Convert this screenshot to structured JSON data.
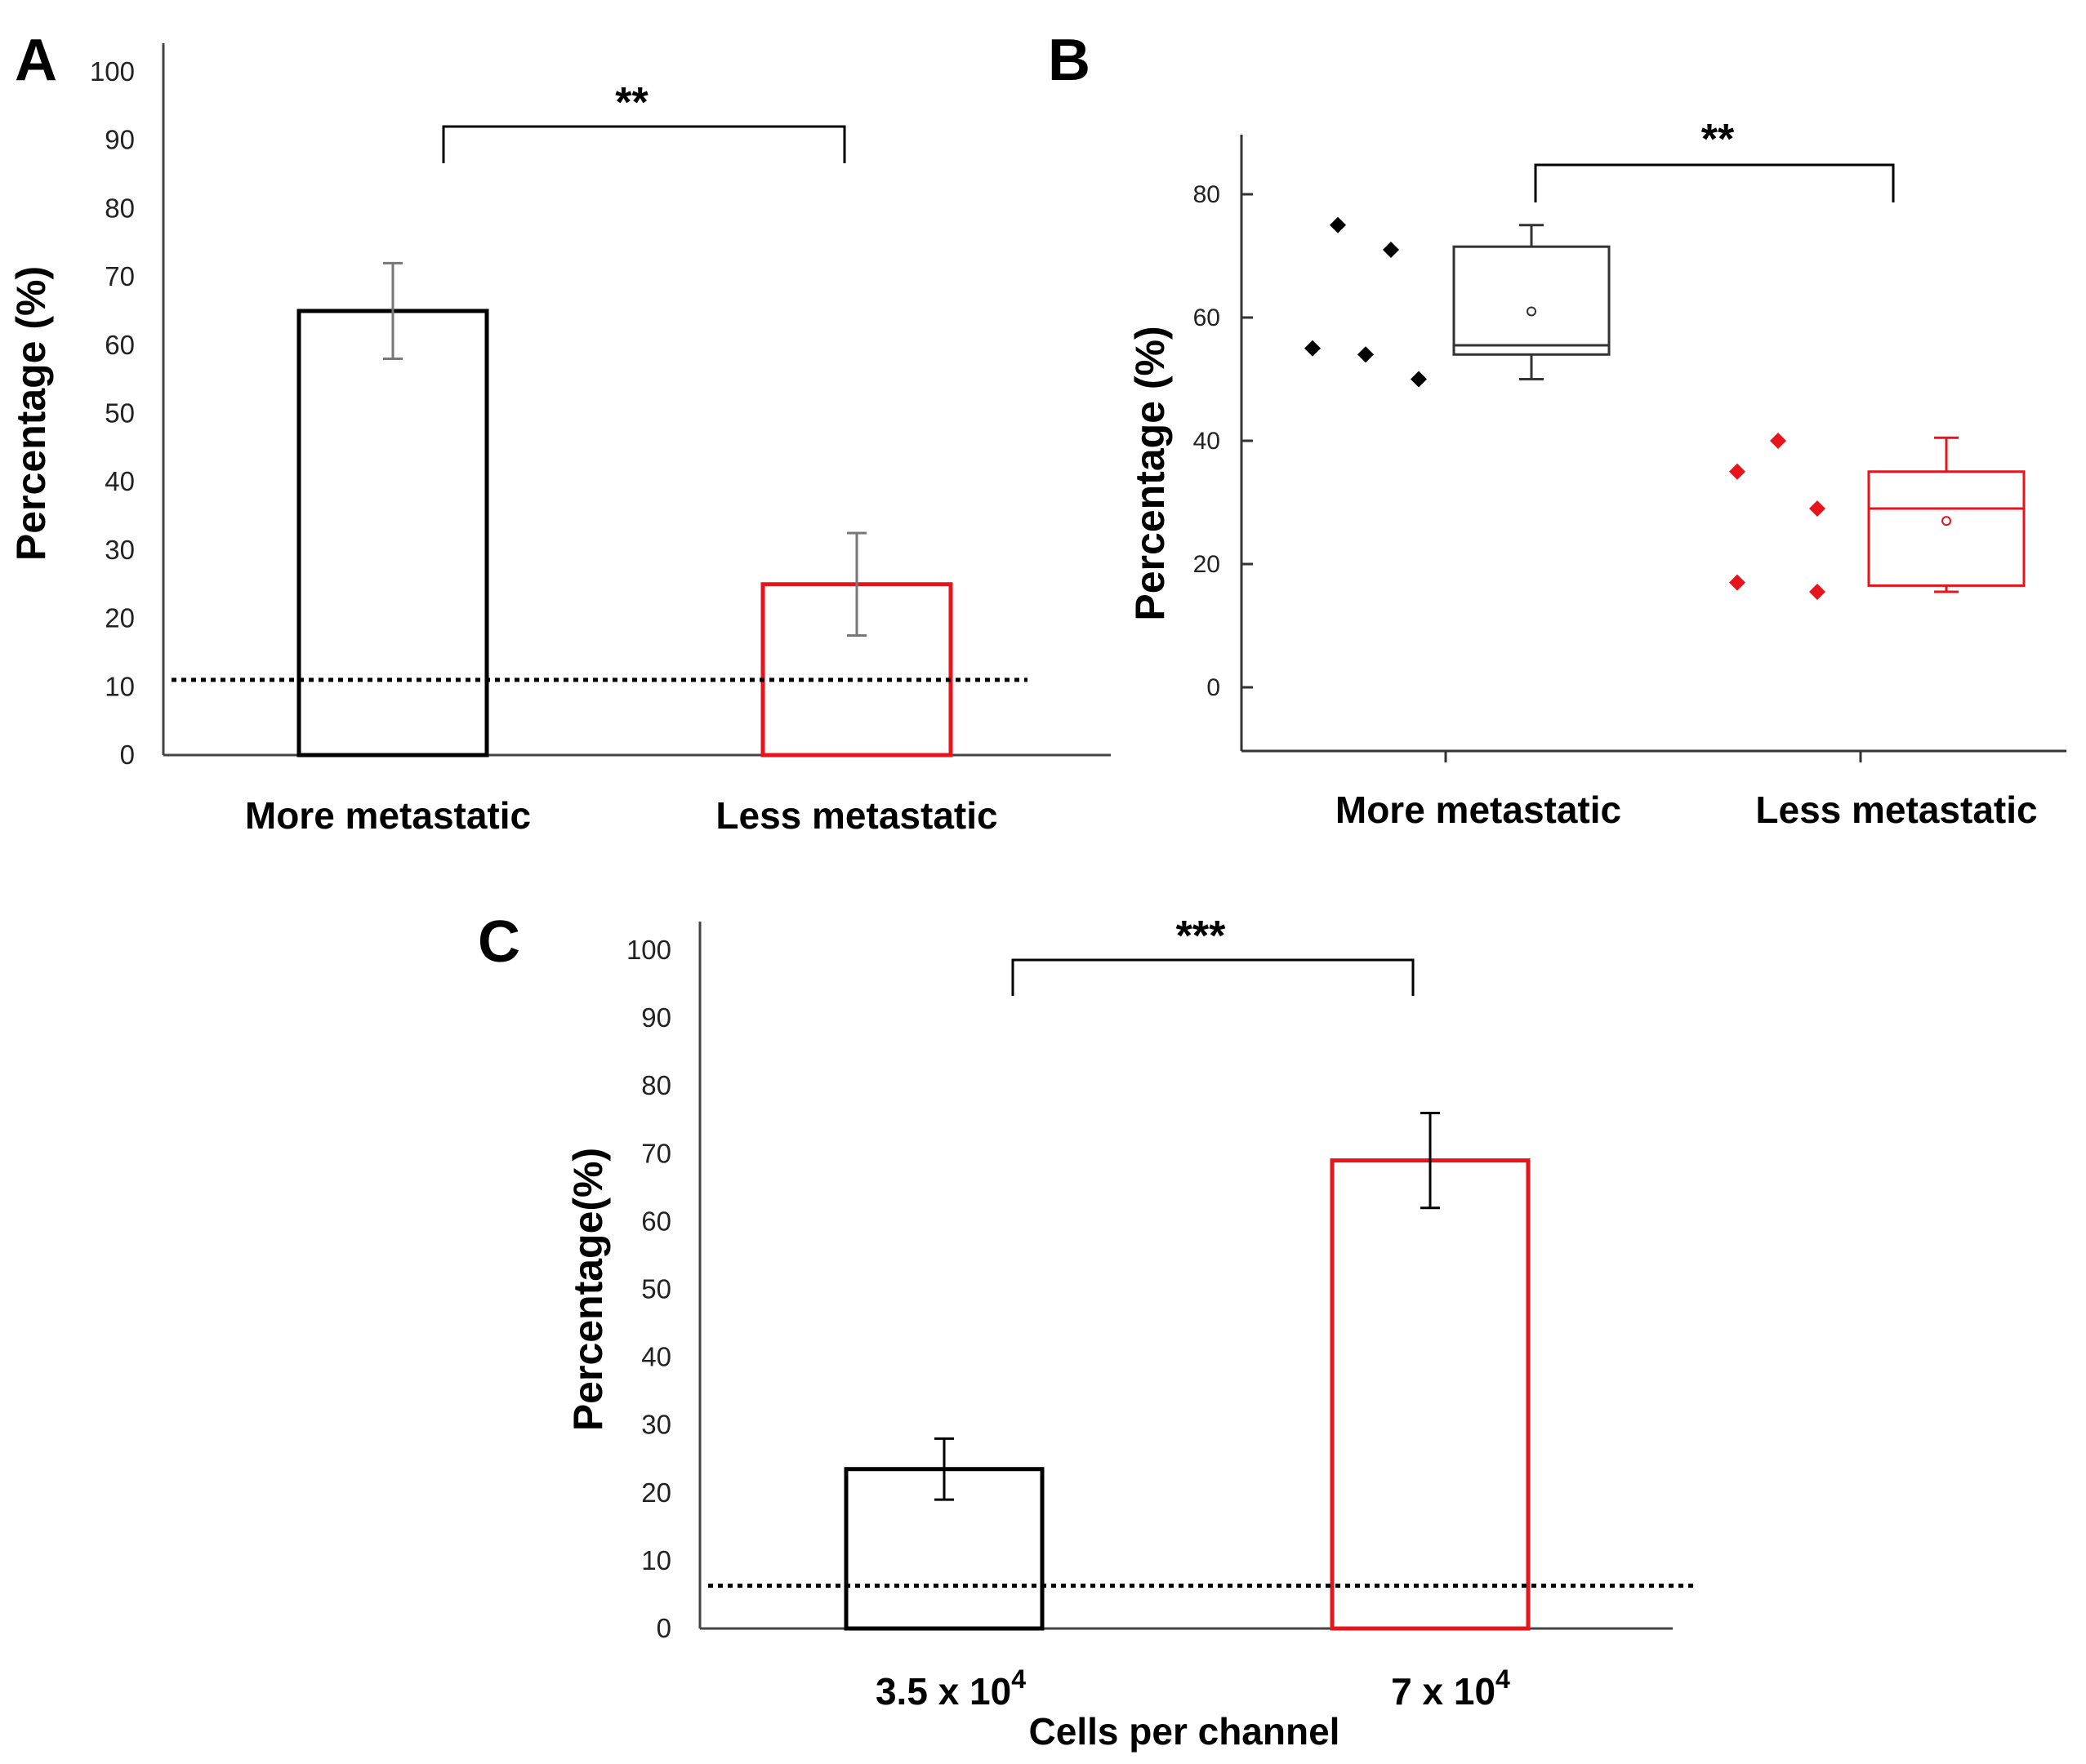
{
  "chart_data": [
    {
      "panel": "A",
      "type": "bar",
      "categories": [
        "More metastatic",
        "Less metastatic"
      ],
      "values": [
        65,
        25
      ],
      "errors": [
        7,
        7.5
      ],
      "colors": [
        "#000000",
        "#e8141b"
      ],
      "ylabel": "Percentage (%)",
      "xlabel": "",
      "ylim": [
        0,
        100
      ],
      "yticks": [
        0,
        10,
        20,
        30,
        40,
        50,
        60,
        70,
        80,
        90,
        100
      ],
      "reference_line": 11,
      "significance": "**"
    },
    {
      "panel": "B",
      "type": "scatter",
      "categories": [
        "More metastatic",
        "Less metastatic"
      ],
      "ylabel": "Percentage (%)",
      "ylim": [
        -10,
        90
      ],
      "yticks": [
        0,
        20,
        40,
        60,
        80
      ],
      "significance": "**",
      "series": [
        {
          "name": "More metastatic",
          "color": "#000000",
          "points": [
            55,
            75,
            54,
            71,
            50
          ],
          "box": {
            "min": 50,
            "q1": 54,
            "median": 55.5,
            "q3": 71.5,
            "max": 75,
            "mean": 61
          }
        },
        {
          "name": "Less metastatic",
          "color": "#e8141b",
          "points": [
            35,
            17,
            40,
            29,
            15.5
          ],
          "box": {
            "min": 15.5,
            "q1": 16.5,
            "median": 29,
            "q3": 35,
            "max": 40.5,
            "mean": 27
          }
        }
      ]
    },
    {
      "panel": "C",
      "type": "bar",
      "categories": [
        "3.5 x 10",
        "7 x 10"
      ],
      "category_superscripts": [
        "4",
        "4"
      ],
      "values": [
        23.5,
        69
      ],
      "errors": [
        4.5,
        7
      ],
      "colors": [
        "#000000",
        "#e8141b"
      ],
      "ylabel": "Percentage(%)",
      "xlabel": "Cells per channel",
      "ylim": [
        0,
        100
      ],
      "yticks": [
        0,
        10,
        20,
        30,
        40,
        50,
        60,
        70,
        80,
        90,
        100
      ],
      "reference_line": 6.3,
      "significance": "***"
    }
  ]
}
